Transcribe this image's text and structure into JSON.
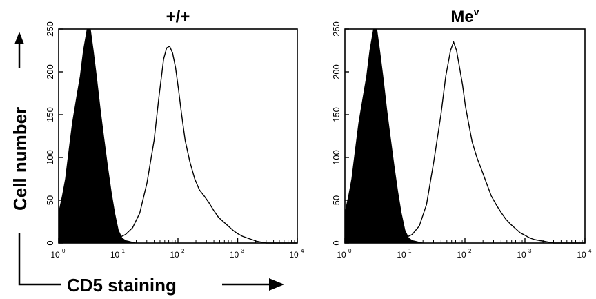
{
  "figure": {
    "ylabel": "Cell number",
    "xlabel": "CD5 staining"
  },
  "chart_data": [
    {
      "type": "area",
      "title": "+/+",
      "title_superscript": "",
      "xscale": "log",
      "xlim": [
        1,
        10000
      ],
      "ylim": [
        0,
        250
      ],
      "yticks": [
        0,
        50,
        100,
        150,
        200,
        250
      ],
      "xticks": [
        {
          "base": "10",
          "exp": "0"
        },
        {
          "base": "10",
          "exp": "1"
        },
        {
          "base": "10",
          "exp": "2"
        },
        {
          "base": "10",
          "exp": "3"
        },
        {
          "base": "10",
          "exp": "4"
        }
      ],
      "series": [
        {
          "style": "filled",
          "x": [
            1,
            1.15,
            1.3,
            1.5,
            1.7,
            2.0,
            2.3,
            2.6,
            3.0,
            3.4,
            3.8,
            4.3,
            5.0,
            5.8,
            6.6,
            7.6,
            8.7,
            10,
            11.5,
            13.2,
            15.1,
            17.4,
            20
          ],
          "y": [
            35,
            55,
            75,
            110,
            140,
            170,
            195,
            225,
            250,
            250,
            225,
            195,
            155,
            120,
            90,
            60,
            35,
            15,
            6,
            3,
            2,
            1,
            0
          ]
        },
        {
          "style": "outline",
          "x": [
            1,
            2,
            5,
            10,
            13.2,
            17.4,
            22.9,
            30.2,
            39.8,
            47.9,
            57.5,
            64.6,
            72.4,
            81.3,
            91.2,
            102,
            115,
            132,
            158,
            191,
            229,
            275,
            331,
            398,
            479,
            575,
            692,
            832,
            1000,
            1202,
            1445,
            1738,
            2089,
            2512,
            3000,
            5000,
            10000
          ],
          "y": [
            2,
            3,
            4,
            6,
            10,
            18,
            35,
            70,
            120,
            170,
            215,
            228,
            230,
            222,
            205,
            180,
            150,
            120,
            95,
            75,
            62,
            55,
            47,
            38,
            30,
            25,
            20,
            15,
            11,
            8,
            6,
            4,
            2,
            1,
            0,
            0,
            0
          ]
        }
      ]
    },
    {
      "type": "area",
      "title": "Me",
      "title_superscript": "v",
      "xscale": "log",
      "xlim": [
        1,
        10000
      ],
      "ylim": [
        0,
        250
      ],
      "yticks": [
        0,
        50,
        100,
        150,
        200,
        250
      ],
      "xticks": [
        {
          "base": "10",
          "exp": "0"
        },
        {
          "base": "10",
          "exp": "1"
        },
        {
          "base": "10",
          "exp": "2"
        },
        {
          "base": "10",
          "exp": "3"
        },
        {
          "base": "10",
          "exp": "4"
        }
      ],
      "series": [
        {
          "style": "filled",
          "x": [
            1,
            1.15,
            1.3,
            1.5,
            1.7,
            2.0,
            2.3,
            2.6,
            3.0,
            3.4,
            3.8,
            4.3,
            5.0,
            5.8,
            6.6,
            7.6,
            8.7,
            10,
            11.5,
            13.2,
            15.1,
            17.4,
            20
          ],
          "y": [
            35,
            55,
            75,
            110,
            140,
            170,
            195,
            225,
            250,
            250,
            225,
            195,
            155,
            120,
            90,
            60,
            35,
            15,
            6,
            3,
            2,
            1,
            0
          ]
        },
        {
          "style": "outline",
          "x": [
            1,
            2,
            5,
            10,
            13.2,
            17.4,
            22.9,
            30.2,
            39.8,
            47.9,
            57.5,
            64.6,
            72.4,
            81.3,
            91.2,
            102,
            115,
            132,
            158,
            191,
            229,
            275,
            331,
            398,
            479,
            575,
            692,
            832,
            1000,
            1202,
            1445,
            1738,
            2089,
            2512,
            3000,
            5000,
            10000
          ],
          "y": [
            2,
            3,
            4,
            6,
            10,
            20,
            45,
            95,
            150,
            195,
            225,
            235,
            225,
            205,
            185,
            160,
            140,
            118,
            100,
            85,
            70,
            55,
            45,
            36,
            28,
            22,
            17,
            12,
            9,
            6,
            4,
            3,
            2,
            1,
            0,
            0,
            0
          ]
        }
      ]
    }
  ]
}
